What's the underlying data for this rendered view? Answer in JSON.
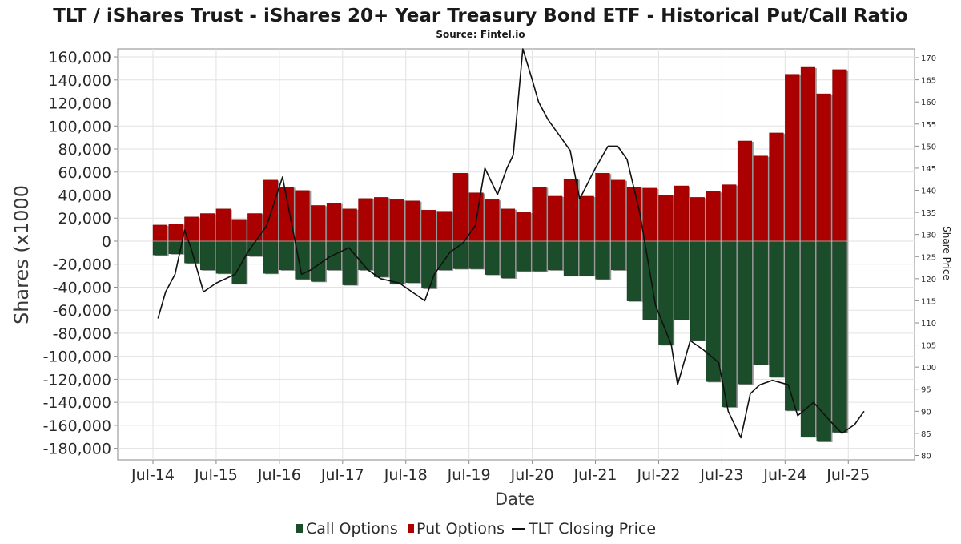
{
  "chart_data": {
    "type": "bar",
    "title": "TLT / iShares Trust - iShares 20+ Year Treasury Bond ETF - Historical Put/Call Ratio",
    "subtitle": "Source: Fintel.io",
    "xlabel": "Date",
    "ylabel": "Shares (x1000",
    "y2label": "Share Price",
    "ylim": [
      -190000,
      167000
    ],
    "y2lim": [
      79,
      172
    ],
    "yticks": [
      "160,000",
      "140,000",
      "120,000",
      "100,000",
      "80,000",
      "60,000",
      "40,000",
      "20,000",
      "0",
      "-20,000",
      "-40,000",
      "-60,000",
      "-80,000",
      "-100,000",
      "-120,000",
      "-140,000",
      "-160,000",
      "-180,000"
    ],
    "y2ticks": [
      "170",
      "165",
      "160",
      "155",
      "150",
      "145",
      "140",
      "135",
      "130",
      "125",
      "120",
      "115",
      "110",
      "105",
      "100",
      "95",
      "90",
      "85",
      "80"
    ],
    "xticks": [
      "Jul-14",
      "Jul-15",
      "Jul-16",
      "Jul-17",
      "Jul-18",
      "Jul-19",
      "Jul-20",
      "Jul-21",
      "Jul-22",
      "Jul-23",
      "Jul-24",
      "Jul-25"
    ],
    "grid": true,
    "legend_position": "bottom",
    "series": [
      {
        "name": "Call Options",
        "color": "#1b4d2a"
      },
      {
        "name": "Put Options",
        "color": "#aa0000"
      },
      {
        "name": "TLT Closing Price",
        "color": "#111111"
      }
    ],
    "quarters": [
      "Q3 2014",
      "Q4 2014",
      "Q1 2015",
      "Q2 2015",
      "Q3 2015",
      "Q4 2015",
      "Q1 2016",
      "Q2 2016",
      "Q3 2016",
      "Q4 2016",
      "Q1 2017",
      "Q2 2017",
      "Q3 2017",
      "Q4 2017",
      "Q1 2018",
      "Q2 2018",
      "Q3 2018",
      "Q4 2018",
      "Q1 2019",
      "Q2 2019",
      "Q3 2019",
      "Q4 2019",
      "Q1 2020",
      "Q2 2020",
      "Q3 2020",
      "Q4 2020",
      "Q1 2021",
      "Q2 2021",
      "Q3 2021",
      "Q4 2021",
      "Q1 2022",
      "Q2 2022",
      "Q3 2022",
      "Q4 2022",
      "Q1 2023",
      "Q2 2023",
      "Q3 2023",
      "Q4 2023",
      "Q1 2024",
      "Q2 2024",
      "Q3 2024",
      "Q4 2024",
      "Q1 2025",
      "Q2 2025"
    ],
    "put_values": [
      14000,
      15000,
      21000,
      24000,
      28000,
      19000,
      24000,
      53000,
      47000,
      44000,
      31000,
      33000,
      28000,
      37000,
      38000,
      36000,
      35000,
      27000,
      26000,
      59000,
      42000,
      36000,
      28000,
      25000,
      47000,
      39000,
      54000,
      39000,
      59000,
      53000,
      47000,
      46000,
      40000,
      48000,
      38000,
      43000,
      49000,
      87000,
      74000,
      94000,
      145000,
      151000,
      128000,
      149000
    ],
    "call_values": [
      -12000,
      -11000,
      -19000,
      -25000,
      -28000,
      -37000,
      -13000,
      -28000,
      -25000,
      -33000,
      -35000,
      -25000,
      -38000,
      -25000,
      -31000,
      -37000,
      -36000,
      -41000,
      -25000,
      -24000,
      -24000,
      -29000,
      -32000,
      -26000,
      -26000,
      -25000,
      -30000,
      -30000,
      -33000,
      -25000,
      -52000,
      -68000,
      -90000,
      -68000,
      -86000,
      -122000,
      -144000,
      -124000,
      -107000,
      -118000,
      -147000,
      -170000,
      -174000,
      -166000
    ],
    "price_x": [
      2014.58,
      2014.7,
      2014.85,
      2015.0,
      2015.1,
      2015.3,
      2015.5,
      2015.8,
      2016.0,
      2016.3,
      2016.55,
      2016.85,
      2017.0,
      2017.3,
      2017.6,
      2017.9,
      2018.1,
      2018.4,
      2018.8,
      2018.95,
      2019.2,
      2019.4,
      2019.6,
      2019.75,
      2019.95,
      2020.1,
      2020.2,
      2020.35,
      2020.5,
      2020.6,
      2020.75,
      2020.9,
      2021.1,
      2021.25,
      2021.5,
      2021.7,
      2021.85,
      2022.0,
      2022.2,
      2022.45,
      2022.7,
      2022.8,
      2023.0,
      2023.2,
      2023.45,
      2023.6,
      2023.8,
      2023.95,
      2024.1,
      2024.3,
      2024.55,
      2024.7,
      2024.95,
      2025.2,
      2025.4,
      2025.6,
      2025.75
    ],
    "price_values": [
      111,
      117,
      121,
      131,
      127,
      117,
      119,
      121,
      126,
      132,
      143,
      121,
      122,
      125,
      127,
      122,
      120,
      119,
      115,
      121,
      126,
      128,
      132,
      145,
      139,
      145,
      148,
      172,
      165,
      160,
      156,
      153,
      149,
      138,
      145,
      150,
      150,
      147,
      135,
      114,
      105,
      96,
      106,
      104,
      101,
      90,
      84,
      94,
      96,
      97,
      96,
      89,
      92,
      88,
      85,
      87,
      90
    ]
  }
}
